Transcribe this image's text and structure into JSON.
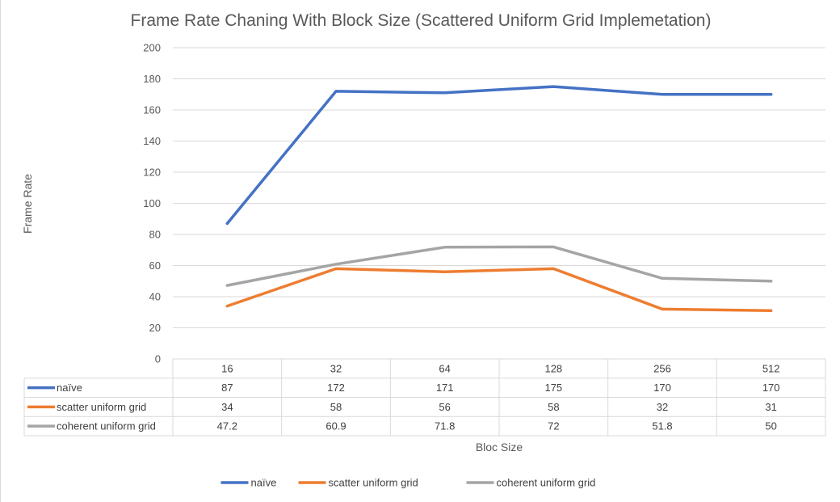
{
  "chart_data": {
    "type": "line",
    "title": "Frame Rate Chaning With Block Size (Scattered Uniform Grid Implemetation)",
    "xlabel": "Bloc Size",
    "ylabel": "Frame Rate",
    "ylim": [
      0,
      200
    ],
    "yticks": [
      0,
      20,
      40,
      60,
      80,
      100,
      120,
      140,
      160,
      180,
      200
    ],
    "categories": [
      "16",
      "32",
      "64",
      "128",
      "256",
      "512"
    ],
    "grid": true,
    "legend": "bottom",
    "data_table": true,
    "series": [
      {
        "name": "naïve",
        "color": "#4472C4",
        "values": [
          87,
          172,
          171,
          175,
          170,
          170
        ],
        "labels": [
          "87",
          "172",
          "171",
          "175",
          "170",
          "170"
        ]
      },
      {
        "name": "scatter  uniform grid",
        "color": "#ED7D31",
        "values": [
          34,
          58,
          56,
          58,
          32,
          31
        ],
        "labels": [
          "34",
          "58",
          "56",
          "58",
          "32",
          "31"
        ]
      },
      {
        "name": "coherent  uniform grid",
        "color": "#A5A5A5",
        "values": [
          47.2,
          60.9,
          71.8,
          72,
          51.8,
          50
        ],
        "labels": [
          "47.2",
          "60.9",
          "71.8",
          "72",
          "51.8",
          "50"
        ]
      }
    ]
  }
}
